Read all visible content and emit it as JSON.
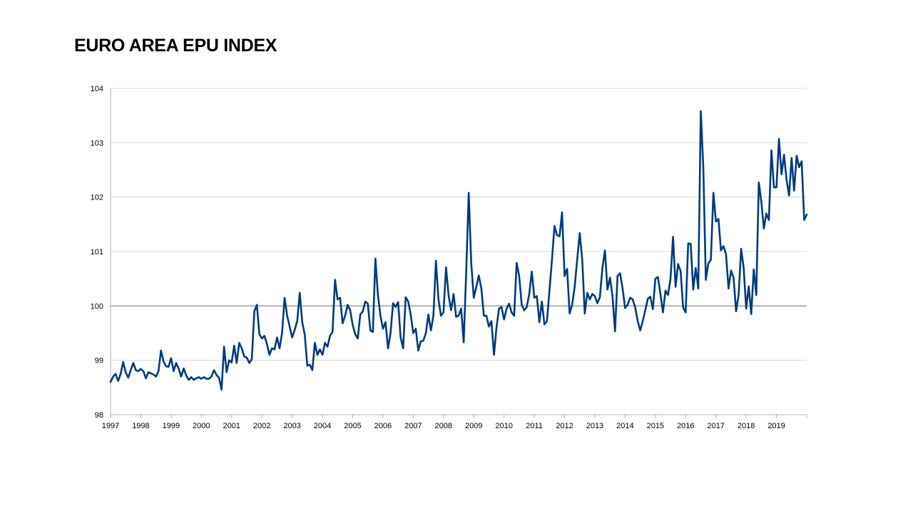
{
  "title": "EURO AREA EPU INDEX",
  "colors": {
    "line": "#003A7D",
    "gridline": "#D0D0D0",
    "baseline": "#808080",
    "axis": "#B0B0B0"
  },
  "chart_data": {
    "type": "line",
    "title": "EURO AREA EPU INDEX",
    "xlabel": "",
    "ylabel": "",
    "x_start": 1997,
    "xlim": [
      1997,
      2020
    ],
    "ylim": [
      98,
      104
    ],
    "yticks": [
      "98",
      "99",
      "100",
      "101",
      "102",
      "103",
      "104"
    ],
    "xticks": [
      "1997",
      "1998",
      "1999",
      "2000",
      "2001",
      "2002",
      "2003",
      "2004",
      "2005",
      "2006",
      "2007",
      "2008",
      "2009",
      "2010",
      "2011",
      "2012",
      "2013",
      "2014",
      "2015",
      "2016",
      "2017",
      "2018",
      "2019"
    ],
    "reference_line": 100,
    "grid": true,
    "legend": "none",
    "series": [
      {
        "name": "",
        "frequency": "monthly",
        "values": [
          98.6,
          98.7,
          98.75,
          98.62,
          98.75,
          98.97,
          98.78,
          98.68,
          98.82,
          98.95,
          98.82,
          98.8,
          98.84,
          98.8,
          98.67,
          98.78,
          98.76,
          98.74,
          98.7,
          98.8,
          99.18,
          98.98,
          98.89,
          98.88,
          99.04,
          98.8,
          98.95,
          98.85,
          98.7,
          98.85,
          98.72,
          98.64,
          98.69,
          98.64,
          98.67,
          98.69,
          98.66,
          98.69,
          98.66,
          98.66,
          98.7,
          98.82,
          98.73,
          98.68,
          98.46,
          99.25,
          98.78,
          99.0,
          98.96,
          99.27,
          98.95,
          99.32,
          99.22,
          99.07,
          99.05,
          98.95,
          99.02,
          99.9,
          100.02,
          99.48,
          99.4,
          99.45,
          99.3,
          99.1,
          99.22,
          99.2,
          99.42,
          99.22,
          99.5,
          100.15,
          99.82,
          99.62,
          99.42,
          99.56,
          99.72,
          100.24,
          99.7,
          99.47,
          98.9,
          98.92,
          98.82,
          99.32,
          99.1,
          99.2,
          99.1,
          99.32,
          99.25,
          99.45,
          99.52,
          100.48,
          100.12,
          100.15,
          99.68,
          99.82,
          100.02,
          99.92,
          99.65,
          99.48,
          99.4,
          99.84,
          99.9,
          100.08,
          100.04,
          99.55,
          99.52,
          100.87,
          100.2,
          99.82,
          99.58,
          99.7,
          99.22,
          99.5,
          100.05,
          99.98,
          100.07,
          99.42,
          99.22,
          100.16,
          100.08,
          99.84,
          99.5,
          99.58,
          99.18,
          99.35,
          99.36,
          99.5,
          99.84,
          99.55,
          99.82,
          100.83,
          100.12,
          99.82,
          99.88,
          100.71,
          100.2,
          99.92,
          100.22,
          99.8,
          99.82,
          99.95,
          99.33,
          100.63,
          102.08,
          100.78,
          100.15,
          100.35,
          100.56,
          100.32,
          99.82,
          99.82,
          99.62,
          99.72,
          99.1,
          99.6,
          99.95,
          99.98,
          99.75,
          99.95,
          100.04,
          99.88,
          99.82,
          100.79,
          100.55,
          100.02,
          99.92,
          99.98,
          100.22,
          100.63,
          100.15,
          100.18,
          99.7,
          100.08,
          99.66,
          99.72,
          100.28,
          100.85,
          101.47,
          101.3,
          101.28,
          101.72,
          100.55,
          100.68,
          99.86,
          100.02,
          100.35,
          100.85,
          101.34,
          100.85,
          99.86,
          100.24,
          100.12,
          100.22,
          100.18,
          100.05,
          100.16,
          100.7,
          101.02,
          100.3,
          100.52,
          100.18,
          99.53,
          100.55,
          100.6,
          100.32,
          99.96,
          100.02,
          100.15,
          100.12,
          99.97,
          99.72,
          99.55,
          99.72,
          99.92,
          100.13,
          100.17,
          99.94,
          100.5,
          100.53,
          100.22,
          99.88,
          100.28,
          100.2,
          100.5,
          101.27,
          100.35,
          100.77,
          100.64,
          99.97,
          99.88,
          101.15,
          101.14,
          100.3,
          100.7,
          100.32,
          103.58,
          102.55,
          100.48,
          100.78,
          100.85,
          102.08,
          101.55,
          101.6,
          101.02,
          101.1,
          100.95,
          100.32,
          100.65,
          100.52,
          99.9,
          100.2,
          101.05,
          100.7,
          99.95,
          100.36,
          99.85,
          100.67,
          100.2,
          102.27,
          101.92,
          101.42,
          101.7,
          101.58,
          102.86,
          102.18,
          102.18,
          103.07,
          102.42,
          102.78,
          102.32,
          102.03,
          102.72,
          102.12,
          102.76,
          102.55,
          102.66,
          101.58,
          101.68
        ]
      }
    ]
  }
}
